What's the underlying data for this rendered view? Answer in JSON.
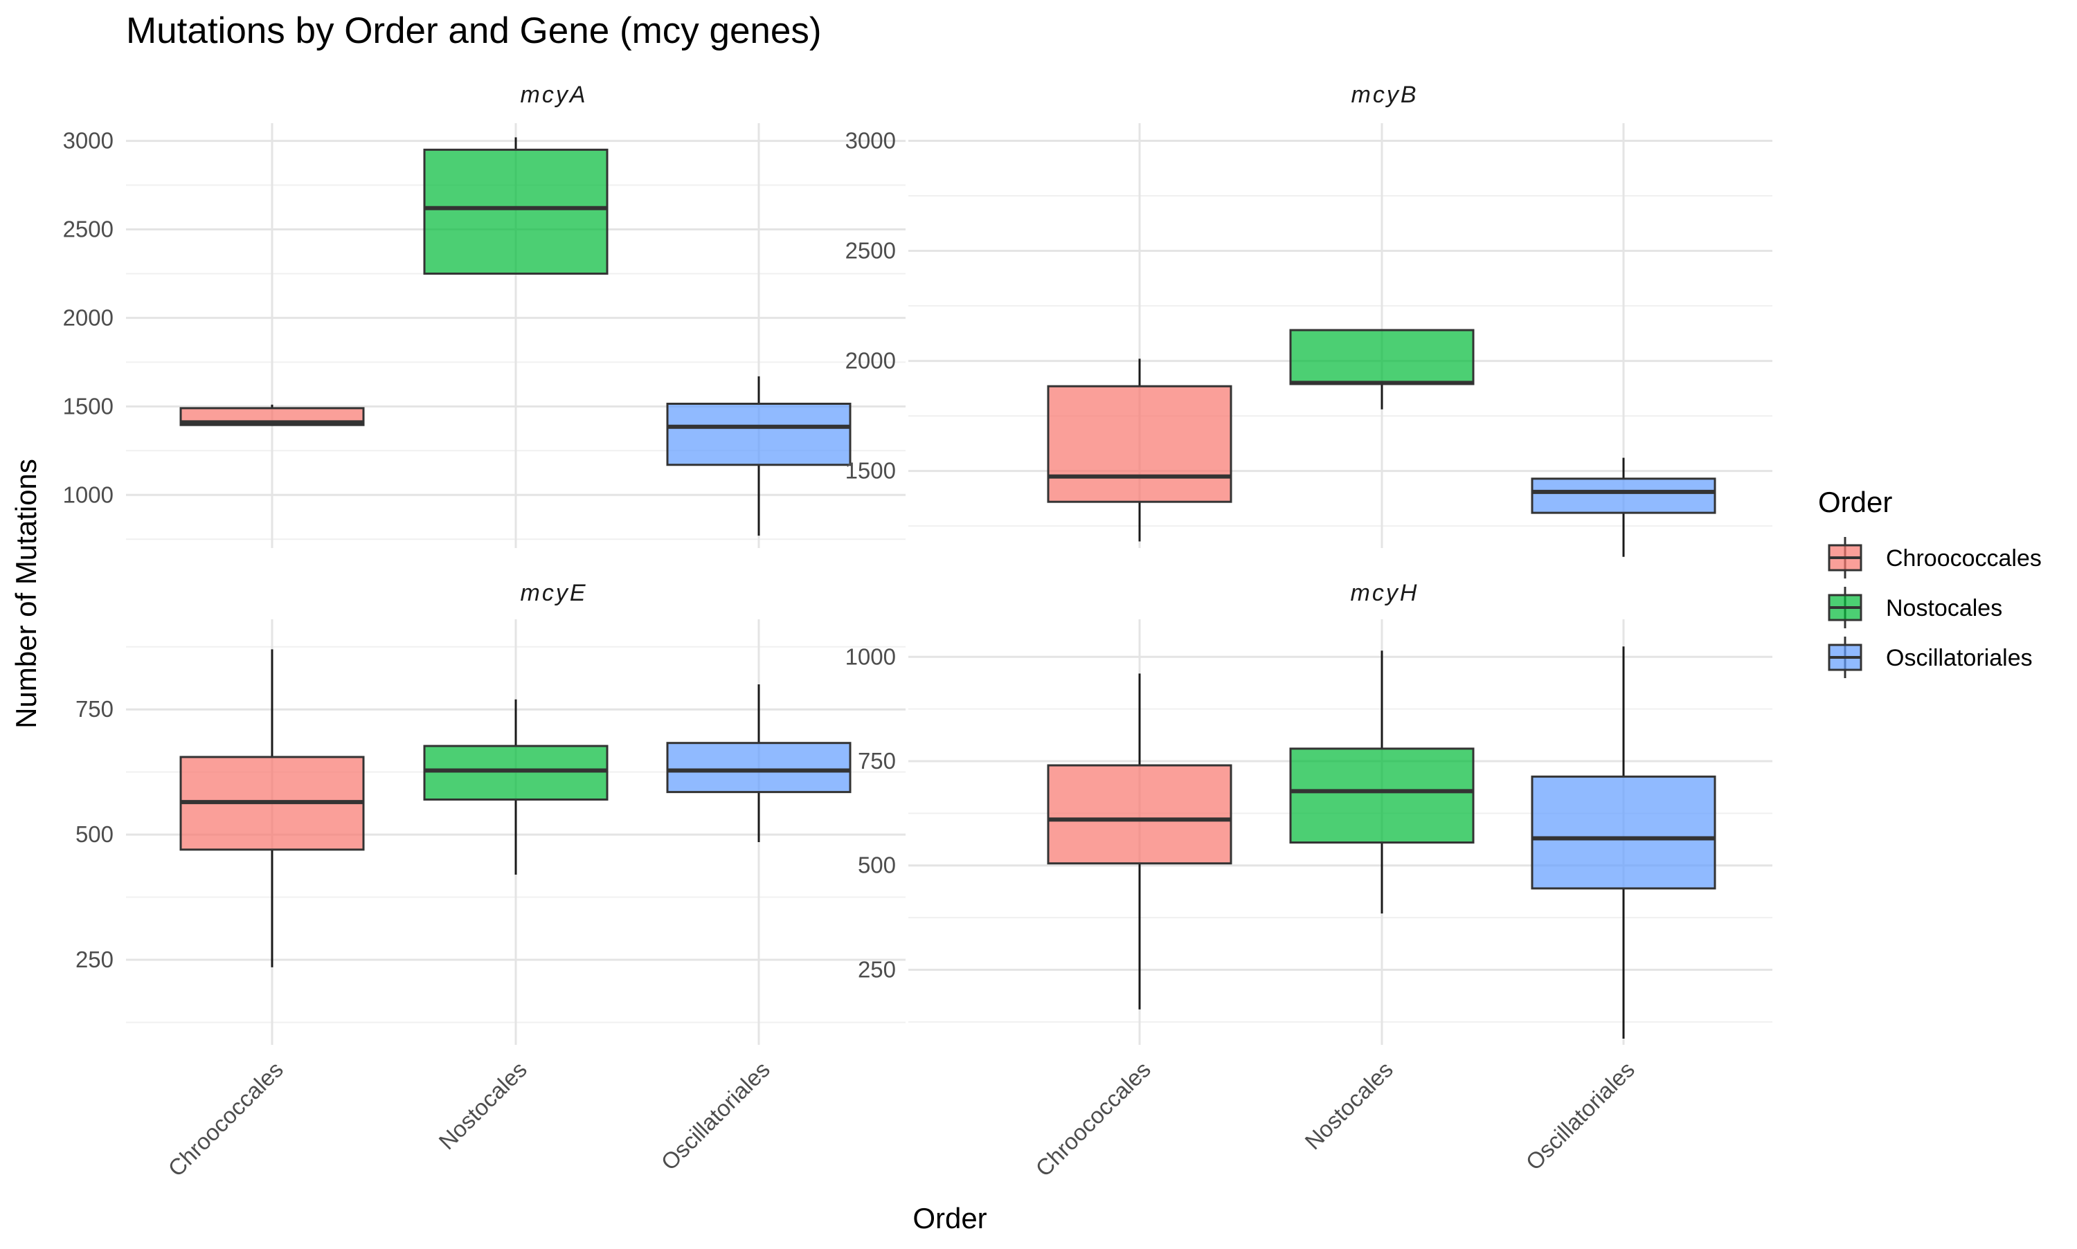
{
  "colors": {
    "Chroococcales": "#F8766D",
    "Nostocales": "#00BA38",
    "Oscillatoriales": "#619CFF"
  },
  "chart_data": {
    "type": "boxplot",
    "title": "Mutations by Order and Gene (mcy genes)",
    "xlabel": "Order",
    "ylabel": "Number of Mutations",
    "categories": [
      "Chroococcales",
      "Nostocales",
      "Oscillatoriales"
    ],
    "legend": {
      "title": "Order",
      "position": "right",
      "entries": [
        "Chroococcales",
        "Nostocales",
        "Oscillatoriales"
      ]
    },
    "grid": true,
    "facets": [
      {
        "gene": "mcyA",
        "ylim": [
          700,
          3100
        ],
        "yticks": [
          1000,
          1500,
          2000,
          2500,
          3000
        ],
        "boxes": [
          {
            "order": "Chroococcales",
            "min": 1395,
            "q1": 1395,
            "median": 1410,
            "q3": 1490,
            "max": 1510
          },
          {
            "order": "Nostocales",
            "min": 2250,
            "q1": 2250,
            "median": 2620,
            "q3": 2950,
            "max": 3020
          },
          {
            "order": "Oscillatoriales",
            "min": 770,
            "q1": 1170,
            "median": 1385,
            "q3": 1515,
            "max": 1670
          }
        ]
      },
      {
        "gene": "mcyB",
        "ylim": [
          1150,
          3080
        ],
        "yticks": [
          1500,
          2000,
          2500,
          3000
        ],
        "boxes": [
          {
            "order": "Chroococcales",
            "min": 1180,
            "q1": 1360,
            "median": 1475,
            "q3": 1885,
            "max": 2010
          },
          {
            "order": "Nostocales",
            "min": 1780,
            "q1": 1895,
            "median": 1900,
            "q3": 2140,
            "max": 2140
          },
          {
            "order": "Oscillatoriales",
            "min": 1110,
            "q1": 1310,
            "median": 1405,
            "q3": 1465,
            "max": 1560
          }
        ]
      },
      {
        "gene": "mcyE",
        "ylim": [
          80,
          930
        ],
        "yticks": [
          250,
          500,
          750
        ],
        "boxes": [
          {
            "order": "Chroococcales",
            "min": 235,
            "q1": 470,
            "median": 565,
            "q3": 655,
            "max": 870
          },
          {
            "order": "Nostocales",
            "min": 420,
            "q1": 570,
            "median": 628,
            "q3": 677,
            "max": 770
          },
          {
            "order": "Oscillatoriales",
            "min": 485,
            "q1": 585,
            "median": 628,
            "q3": 683,
            "max": 800
          }
        ]
      },
      {
        "gene": "mcyH",
        "ylim": [
          70,
          1090
        ],
        "yticks": [
          250,
          500,
          750,
          1000
        ],
        "boxes": [
          {
            "order": "Chroococcales",
            "min": 155,
            "q1": 505,
            "median": 610,
            "q3": 740,
            "max": 960
          },
          {
            "order": "Nostocales",
            "min": 385,
            "q1": 555,
            "median": 678,
            "q3": 780,
            "max": 1015
          },
          {
            "order": "Oscillatoriales",
            "min": 85,
            "q1": 445,
            "median": 565,
            "q3": 713,
            "max": 1025
          }
        ]
      }
    ]
  }
}
